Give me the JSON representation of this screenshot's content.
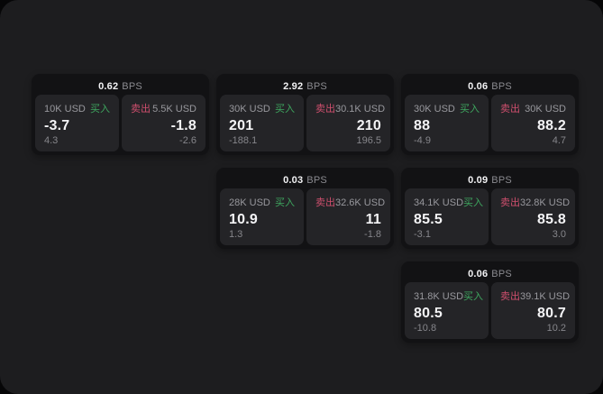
{
  "labels": {
    "buy": "买入",
    "sell": "卖出",
    "bps_unit": "BPS"
  },
  "colors": {
    "surface": "#1d1d1f",
    "card": "#121214",
    "tile": "#242427",
    "buy": "#3ea75f",
    "sell": "#cf4f6e",
    "value_text": "#f4f4f6",
    "muted_text": "#98989d"
  },
  "cards": [
    {
      "row": 1,
      "col": 1,
      "bps": "0.62",
      "buy": {
        "amount": "10K USD",
        "price": "-3.7",
        "change": "4.3"
      },
      "sell": {
        "amount": "5.5K USD",
        "price": "-1.8",
        "change": "-2.6"
      }
    },
    {
      "row": 1,
      "col": 2,
      "bps": "2.92",
      "buy": {
        "amount": "30K USD",
        "price": "201",
        "change": "-188.1"
      },
      "sell": {
        "amount": "30.1K USD",
        "price": "210",
        "change": "196.5"
      }
    },
    {
      "row": 1,
      "col": 3,
      "bps": "0.06",
      "buy": {
        "amount": "30K USD",
        "price": "88",
        "change": "-4.9"
      },
      "sell": {
        "amount": "30K USD",
        "price": "88.2",
        "change": "4.7"
      }
    },
    {
      "row": 2,
      "col": 2,
      "bps": "0.03",
      "buy": {
        "amount": "28K USD",
        "price": "10.9",
        "change": "1.3"
      },
      "sell": {
        "amount": "32.6K USD",
        "price": "11",
        "change": "-1.8"
      }
    },
    {
      "row": 2,
      "col": 3,
      "bps": "0.09",
      "buy": {
        "amount": "34.1K USD",
        "price": "85.5",
        "change": "-3.1"
      },
      "sell": {
        "amount": "32.8K USD",
        "price": "85.8",
        "change": "3.0"
      }
    },
    {
      "row": 3,
      "col": 3,
      "bps": "0.06",
      "buy": {
        "amount": "31.8K USD",
        "price": "80.5",
        "change": "-10.8"
      },
      "sell": {
        "amount": "39.1K USD",
        "price": "80.7",
        "change": "10.2"
      }
    }
  ]
}
